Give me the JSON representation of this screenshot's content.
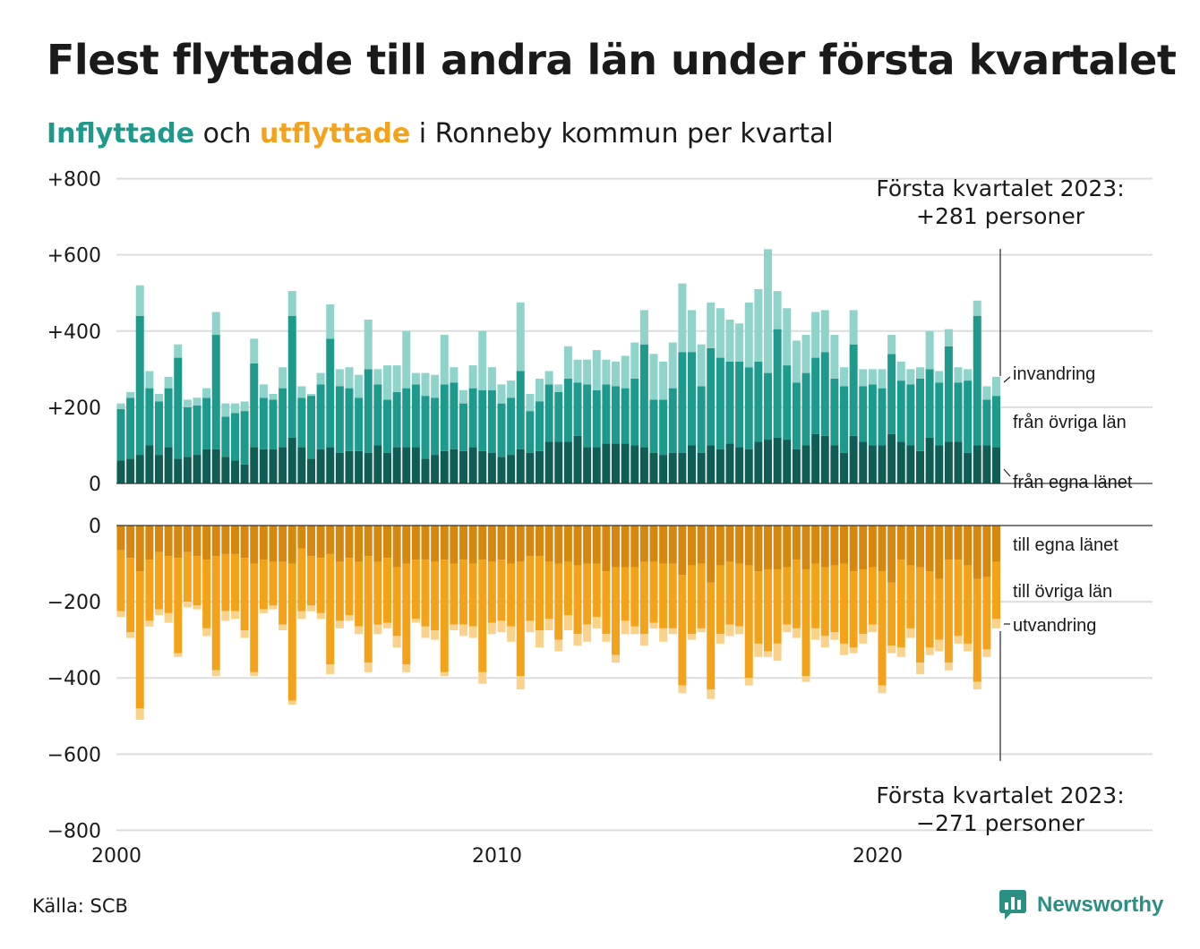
{
  "title": "Flest flyttade till andra län under första kvartalet",
  "subtitle": {
    "part1": "Inflyttade",
    "part2": " och ",
    "part3": "utflyttade",
    "part4": " i Ronneby kommun per kvartal"
  },
  "source": "Källa: SCB",
  "logo_text": "Newsworthy",
  "colors": {
    "in_lan": "#0f5d54",
    "in_ovriga": "#1d9a8c",
    "in_invandring": "#8fd3cb",
    "out_lan": "#d6870f",
    "out_ovriga": "#f5a21b",
    "out_utvandring": "#fad28c",
    "grid": "#dddddd",
    "logo": "#2b8f86"
  },
  "chart_data": {
    "type": "bar",
    "stacked": true,
    "start_quarter": "2000 Q1",
    "end_quarter": "2023 Q1",
    "y_ticks_top": [
      "+800",
      "+600",
      "+400",
      "+200",
      "0"
    ],
    "y_ticks_bottom": [
      "0",
      "−200",
      "−400",
      "−600",
      "−800"
    ],
    "x_ticks": [
      "2000",
      "2010",
      "2020"
    ],
    "grid": true,
    "annotations": {
      "top": [
        "Första kvartalet 2023:",
        "+281 personer"
      ],
      "bottom": [
        "Första kvartalet 2023:",
        "−271 personer"
      ]
    },
    "series_labels_in": [
      "invandring",
      "från övriga län",
      "från egna länet"
    ],
    "series_labels_out": [
      "till egna länet",
      "till övriga län",
      "utvandring"
    ],
    "inflyttade": {
      "fran_egna_lanet": [
        60,
        65,
        75,
        100,
        75,
        95,
        65,
        70,
        75,
        90,
        90,
        70,
        60,
        50,
        95,
        90,
        90,
        95,
        120,
        95,
        65,
        90,
        95,
        80,
        85,
        85,
        80,
        100,
        80,
        95,
        95,
        95,
        65,
        75,
        85,
        90,
        85,
        95,
        85,
        80,
        70,
        75,
        90,
        80,
        85,
        110,
        110,
        110,
        125,
        95,
        95,
        105,
        105,
        105,
        100,
        95,
        80,
        75,
        80,
        80,
        100,
        80,
        100,
        90,
        105,
        95,
        90,
        110,
        115,
        120,
        115,
        90,
        100,
        130,
        125,
        100,
        80,
        125,
        110,
        100,
        100,
        130,
        110,
        100,
        85,
        120,
        100,
        110,
        110,
        80,
        100,
        100,
        95
      ],
      "fran_ovriga_lan": [
        135,
        160,
        365,
        150,
        140,
        155,
        265,
        130,
        130,
        135,
        300,
        105,
        125,
        140,
        220,
        135,
        130,
        155,
        320,
        130,
        165,
        170,
        285,
        175,
        165,
        140,
        220,
        160,
        140,
        145,
        155,
        165,
        165,
        150,
        175,
        175,
        125,
        155,
        160,
        165,
        140,
        150,
        205,
        110,
        130,
        150,
        130,
        165,
        140,
        165,
        150,
        155,
        150,
        145,
        175,
        270,
        140,
        145,
        170,
        265,
        245,
        175,
        255,
        240,
        215,
        225,
        215,
        210,
        175,
        285,
        195,
        175,
        190,
        200,
        220,
        175,
        175,
        240,
        145,
        160,
        150,
        210,
        160,
        160,
        190,
        180,
        165,
        250,
        155,
        190,
        340,
        120,
        135
      ],
      "invandring": [
        15,
        15,
        80,
        45,
        20,
        30,
        35,
        20,
        20,
        25,
        60,
        35,
        25,
        25,
        65,
        35,
        15,
        55,
        65,
        30,
        5,
        30,
        90,
        45,
        55,
        60,
        130,
        40,
        90,
        70,
        150,
        30,
        60,
        60,
        130,
        40,
        35,
        60,
        155,
        60,
        50,
        45,
        180,
        45,
        60,
        35,
        20,
        85,
        60,
        65,
        105,
        65,
        65,
        85,
        95,
        90,
        120,
        100,
        120,
        180,
        110,
        110,
        120,
        130,
        110,
        100,
        170,
        190,
        325,
        100,
        150,
        110,
        100,
        120,
        110,
        115,
        50,
        90,
        45,
        40,
        50,
        50,
        50,
        40,
        30,
        100,
        30,
        45,
        40,
        30,
        40,
        35,
        50
      ]
    },
    "utflyttade": {
      "till_egna_lanet": [
        65,
        85,
        120,
        90,
        70,
        80,
        85,
        70,
        80,
        90,
        80,
        75,
        75,
        85,
        100,
        90,
        95,
        95,
        100,
        60,
        80,
        85,
        75,
        95,
        85,
        95,
        80,
        95,
        85,
        110,
        100,
        90,
        90,
        95,
        90,
        100,
        90,
        100,
        90,
        95,
        90,
        100,
        95,
        80,
        80,
        95,
        100,
        95,
        105,
        100,
        100,
        120,
        110,
        110,
        110,
        95,
        95,
        100,
        100,
        130,
        105,
        100,
        150,
        105,
        95,
        100,
        105,
        120,
        115,
        115,
        110,
        90,
        115,
        100,
        110,
        105,
        100,
        120,
        115,
        110,
        120,
        150,
        90,
        105,
        110,
        120,
        140,
        90,
        90,
        105,
        140,
        135,
        95
      ],
      "till_ovriga_lan": [
        160,
        195,
        360,
        160,
        150,
        150,
        250,
        130,
        130,
        180,
        300,
        150,
        150,
        190,
        285,
        130,
        115,
        165,
        360,
        165,
        130,
        145,
        290,
        155,
        150,
        170,
        280,
        165,
        170,
        180,
        265,
        155,
        175,
        180,
        295,
        160,
        170,
        165,
        295,
        160,
        160,
        165,
        300,
        170,
        195,
        150,
        200,
        140,
        180,
        160,
        140,
        165,
        230,
        140,
        155,
        190,
        160,
        170,
        170,
        290,
        180,
        170,
        280,
        180,
        165,
        165,
        295,
        190,
        215,
        195,
        150,
        180,
        280,
        170,
        180,
        175,
        210,
        200,
        170,
        150,
        300,
        165,
        230,
        165,
        250,
        200,
        160,
        270,
        200,
        205,
        270,
        190,
        150
      ],
      "utvandring": [
        15,
        15,
        30,
        15,
        15,
        25,
        10,
        15,
        10,
        20,
        15,
        25,
        20,
        20,
        10,
        10,
        10,
        15,
        10,
        20,
        15,
        15,
        25,
        20,
        15,
        20,
        25,
        25,
        15,
        30,
        20,
        10,
        30,
        25,
        10,
        15,
        30,
        30,
        30,
        30,
        30,
        40,
        35,
        30,
        45,
        30,
        30,
        40,
        30,
        45,
        30,
        20,
        20,
        35,
        20,
        30,
        15,
        35,
        15,
        20,
        15,
        10,
        25,
        25,
        30,
        20,
        20,
        35,
        15,
        45,
        20,
        25,
        15,
        30,
        30,
        20,
        30,
        15,
        25,
        20,
        20,
        20,
        25,
        25,
        30,
        20,
        30,
        20,
        20,
        20,
        20,
        20,
        25
      ]
    }
  }
}
